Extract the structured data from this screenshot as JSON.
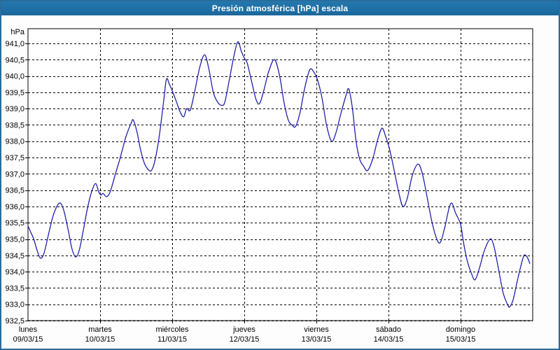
{
  "window": {
    "title": "Presión atmosférica [hPa] escala"
  },
  "colors": {
    "titlebar_bg": "#1d6fa5",
    "window_border": "#2a6d9c",
    "background": "#fdfdfd",
    "plot_border": "#000000",
    "grid": "#000000",
    "line": "#2121aa",
    "title_text": "#ffffff",
    "axis_text": "#000000"
  },
  "chart_data": {
    "type": "line",
    "title": "Presión atmosférica [hPa] escala",
    "unit_label": "hPa",
    "xlabel": "",
    "ylabel": "hPa",
    "x_unit": "days_since_monday_00h",
    "xlim": [
      0,
      7
    ],
    "ylim": [
      932.5,
      941.45
    ],
    "grid": "dashed",
    "legend": "none",
    "y_ticks": [
      {
        "v": 941.0,
        "label": "941,0"
      },
      {
        "v": 940.5,
        "label": "940,5"
      },
      {
        "v": 940.0,
        "label": "940,0"
      },
      {
        "v": 939.5,
        "label": "939,5"
      },
      {
        "v": 939.0,
        "label": "939,0"
      },
      {
        "v": 938.5,
        "label": "938,5"
      },
      {
        "v": 938.0,
        "label": "938,0"
      },
      {
        "v": 937.5,
        "label": "937,5"
      },
      {
        "v": 937.0,
        "label": "937,0"
      },
      {
        "v": 936.5,
        "label": "936,5"
      },
      {
        "v": 936.0,
        "label": "936,0"
      },
      {
        "v": 935.5,
        "label": "935,5"
      },
      {
        "v": 935.0,
        "label": "935,0"
      },
      {
        "v": 934.5,
        "label": "934,5"
      },
      {
        "v": 934.0,
        "label": "934,0"
      },
      {
        "v": 933.5,
        "label": "933,5"
      },
      {
        "v": 933.0,
        "label": "933,0"
      },
      {
        "v": 932.5,
        "label": "932,5"
      }
    ],
    "days": [
      {
        "name": "lunes",
        "date": "09/03/15",
        "d": 0
      },
      {
        "name": "martes",
        "date": "10/03/15",
        "d": 1
      },
      {
        "name": "miércoles",
        "date": "11/03/15",
        "d": 2
      },
      {
        "name": "jueves",
        "date": "12/03/15",
        "d": 3
      },
      {
        "name": "viernes",
        "date": "13/03/15",
        "d": 4
      },
      {
        "name": "sábado",
        "date": "14/03/15",
        "d": 5
      },
      {
        "name": "domingo",
        "date": "15/03/15",
        "d": 6
      }
    ],
    "series": [
      {
        "name": "Presión atmosférica",
        "color": "#2121aa",
        "points": [
          [
            0.0,
            935.4
          ],
          [
            0.04,
            935.2
          ],
          [
            0.08,
            935.0
          ],
          [
            0.12,
            934.7
          ],
          [
            0.17,
            934.42
          ],
          [
            0.22,
            934.55
          ],
          [
            0.28,
            935.1
          ],
          [
            0.34,
            935.65
          ],
          [
            0.4,
            936.0
          ],
          [
            0.45,
            936.1
          ],
          [
            0.5,
            935.85
          ],
          [
            0.56,
            935.25
          ],
          [
            0.61,
            934.7
          ],
          [
            0.66,
            934.45
          ],
          [
            0.71,
            934.65
          ],
          [
            0.77,
            935.3
          ],
          [
            0.83,
            936.0
          ],
          [
            0.89,
            936.5
          ],
          [
            0.94,
            936.7
          ],
          [
            0.98,
            936.45
          ],
          [
            1.01,
            936.35
          ],
          [
            1.04,
            936.4
          ],
          [
            1.09,
            936.3
          ],
          [
            1.14,
            936.45
          ],
          [
            1.2,
            936.9
          ],
          [
            1.28,
            937.5
          ],
          [
            1.36,
            938.15
          ],
          [
            1.43,
            938.55
          ],
          [
            1.46,
            938.65
          ],
          [
            1.51,
            938.3
          ],
          [
            1.56,
            937.75
          ],
          [
            1.61,
            937.35
          ],
          [
            1.66,
            937.15
          ],
          [
            1.71,
            937.1
          ],
          [
            1.76,
            937.4
          ],
          [
            1.82,
            938.15
          ],
          [
            1.88,
            939.2
          ],
          [
            1.92,
            939.9
          ],
          [
            1.96,
            939.75
          ],
          [
            2.0,
            939.55
          ],
          [
            2.06,
            939.2
          ],
          [
            2.11,
            938.9
          ],
          [
            2.16,
            938.75
          ],
          [
            2.2,
            939.0
          ],
          [
            2.25,
            938.95
          ],
          [
            2.31,
            939.5
          ],
          [
            2.38,
            940.25
          ],
          [
            2.45,
            940.65
          ],
          [
            2.51,
            940.2
          ],
          [
            2.57,
            939.5
          ],
          [
            2.63,
            939.2
          ],
          [
            2.69,
            939.1
          ],
          [
            2.73,
            939.2
          ],
          [
            2.79,
            939.85
          ],
          [
            2.85,
            940.55
          ],
          [
            2.91,
            941.05
          ],
          [
            2.96,
            940.75
          ],
          [
            3.0,
            940.55
          ],
          [
            3.04,
            940.4
          ],
          [
            3.1,
            939.85
          ],
          [
            3.16,
            939.3
          ],
          [
            3.21,
            939.15
          ],
          [
            3.27,
            939.55
          ],
          [
            3.34,
            940.15
          ],
          [
            3.42,
            940.5
          ],
          [
            3.49,
            940.0
          ],
          [
            3.55,
            939.2
          ],
          [
            3.61,
            938.65
          ],
          [
            3.66,
            938.5
          ],
          [
            3.71,
            938.45
          ],
          [
            3.77,
            938.85
          ],
          [
            3.84,
            939.65
          ],
          [
            3.91,
            940.2
          ],
          [
            3.97,
            940.1
          ],
          [
            4.02,
            939.85
          ],
          [
            4.08,
            939.3
          ],
          [
            4.14,
            938.5
          ],
          [
            4.21,
            938.0
          ],
          [
            4.27,
            938.25
          ],
          [
            4.34,
            938.85
          ],
          [
            4.41,
            939.4
          ],
          [
            4.45,
            939.6
          ],
          [
            4.5,
            939.0
          ],
          [
            4.55,
            938.0
          ],
          [
            4.6,
            937.45
          ],
          [
            4.65,
            937.25
          ],
          [
            4.71,
            937.1
          ],
          [
            4.78,
            937.45
          ],
          [
            4.85,
            938.05
          ],
          [
            4.91,
            938.4
          ],
          [
            4.96,
            938.15
          ],
          [
            5.01,
            937.8
          ],
          [
            5.07,
            937.2
          ],
          [
            5.14,
            936.45
          ],
          [
            5.2,
            936.0
          ],
          [
            5.26,
            936.25
          ],
          [
            5.33,
            936.95
          ],
          [
            5.41,
            937.3
          ],
          [
            5.47,
            937.0
          ],
          [
            5.53,
            936.35
          ],
          [
            5.6,
            935.55
          ],
          [
            5.67,
            935.0
          ],
          [
            5.72,
            934.9
          ],
          [
            5.78,
            935.35
          ],
          [
            5.84,
            935.95
          ],
          [
            5.88,
            936.1
          ],
          [
            5.93,
            935.8
          ],
          [
            6.0,
            935.45
          ],
          [
            6.04,
            934.9
          ],
          [
            6.09,
            934.35
          ],
          [
            6.15,
            933.95
          ],
          [
            6.2,
            933.75
          ],
          [
            6.26,
            934.1
          ],
          [
            6.33,
            934.65
          ],
          [
            6.41,
            935.0
          ],
          [
            6.46,
            934.8
          ],
          [
            6.52,
            934.15
          ],
          [
            6.59,
            933.35
          ],
          [
            6.65,
            933.0
          ],
          [
            6.68,
            932.92
          ],
          [
            6.73,
            933.15
          ],
          [
            6.8,
            933.85
          ],
          [
            6.87,
            934.45
          ],
          [
            6.9,
            934.5
          ],
          [
            6.93,
            934.42
          ],
          [
            6.96,
            934.25
          ]
        ]
      }
    ]
  }
}
